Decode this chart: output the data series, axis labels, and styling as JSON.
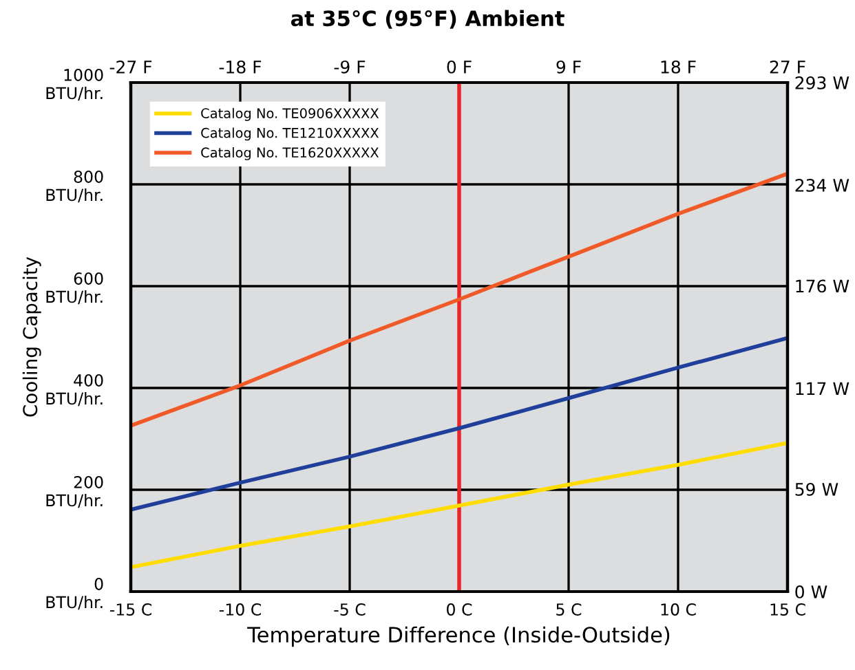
{
  "chart_data": {
    "type": "line",
    "title": "at 35°C (95°F) Ambient",
    "xlabel": "Temperature Difference (Inside-Outside)",
    "ylabel": "Cooling Capacity",
    "x": [
      -15,
      -10,
      -5,
      0,
      5,
      10,
      15
    ],
    "series": [
      {
        "name": "Catalog No. TE0906XXXXX",
        "color": "#ffdd00",
        "values": [
          48,
          90,
          128,
          169,
          210,
          249,
          292
        ]
      },
      {
        "name": "Catalog No. TE1210XXXXX",
        "color": "#1f3f9a",
        "values": [
          161,
          214,
          265,
          321,
          380,
          440,
          498
        ]
      },
      {
        "name": "Catalog No. TE1620XXXXX",
        "color": "#f05a28",
        "values": [
          326,
          405,
          493,
          574,
          658,
          742,
          821
        ]
      }
    ],
    "xlim": [
      -15,
      15
    ],
    "xticks": [
      {
        "value": -15,
        "label": "-15 C"
      },
      {
        "value": -10,
        "label": "-10 C"
      },
      {
        "value": -5,
        "label": "-5 C"
      },
      {
        "value": 0,
        "label": "0 C"
      },
      {
        "value": 5,
        "label": "5 C"
      },
      {
        "value": 10,
        "label": "10 C"
      },
      {
        "value": 15,
        "label": "15 C"
      }
    ],
    "x2lim": [
      -27,
      27
    ],
    "x2ticks": [
      {
        "value": -27,
        "label": "-27 F"
      },
      {
        "value": -18,
        "label": "-18 F"
      },
      {
        "value": -9,
        "label": "-9 F"
      },
      {
        "value": 0,
        "label": "0 F"
      },
      {
        "value": 9,
        "label": "9 F"
      },
      {
        "value": 18,
        "label": "18 F"
      },
      {
        "value": 27,
        "label": "27 F"
      }
    ],
    "ylim": [
      0,
      1000
    ],
    "yticks": [
      {
        "value": 0,
        "label": "0\nBTU/hr."
      },
      {
        "value": 200,
        "label": "200\nBTU/hr."
      },
      {
        "value": 400,
        "label": "400\nBTU/hr."
      },
      {
        "value": 600,
        "label": "600\nBTU/hr."
      },
      {
        "value": 800,
        "label": "800\nBTU/hr."
      },
      {
        "value": 1000,
        "label": "1000\nBTU/hr."
      }
    ],
    "y2lim": [
      0,
      293
    ],
    "y2ticks": [
      {
        "value": 0,
        "label": "0 W"
      },
      {
        "value": 59,
        "label": "59 W"
      },
      {
        "value": 117,
        "label": "117 W"
      },
      {
        "value": 176,
        "label": "176 W"
      },
      {
        "value": 234,
        "label": "234 W"
      },
      {
        "value": 293,
        "label": "293 W"
      }
    ],
    "ref_lines": [
      {
        "axis": "x",
        "value": 0,
        "color": "#e8262b"
      }
    ],
    "grid": true,
    "legend": "top left",
    "marker": "none",
    "line_style": "solid"
  }
}
